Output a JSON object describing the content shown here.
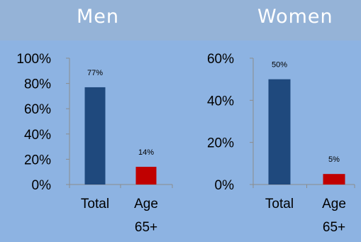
{
  "header": {
    "left_title": "Men",
    "right_title": "Women"
  },
  "colors": {
    "background": "#8db3e2",
    "header": "#95b3d7",
    "total": "#1f497d",
    "age65": "#c00000"
  },
  "chart_data": [
    {
      "type": "bar",
      "title": "Men",
      "categories": [
        "Total",
        "Age 65+"
      ],
      "category_lines": [
        [
          "Total"
        ],
        [
          "Age",
          "65+"
        ]
      ],
      "values": [
        77,
        14
      ],
      "data_labels": [
        "77%",
        "14%"
      ],
      "yticks": [
        "0%",
        "20%",
        "40%",
        "60%",
        "80%",
        "100%"
      ],
      "ylim": [
        0,
        100
      ],
      "bar_colors": [
        "#1f497d",
        "#c00000"
      ]
    },
    {
      "type": "bar",
      "title": "Women",
      "categories": [
        "Total",
        "Age 65+"
      ],
      "category_lines": [
        [
          "Total"
        ],
        [
          "Age",
          "65+"
        ]
      ],
      "values": [
        50,
        5
      ],
      "data_labels": [
        "50%",
        "5%"
      ],
      "yticks": [
        "0%",
        "20%",
        "40%",
        "60%"
      ],
      "ylim": [
        0,
        60
      ],
      "bar_colors": [
        "#1f497d",
        "#c00000"
      ]
    }
  ]
}
